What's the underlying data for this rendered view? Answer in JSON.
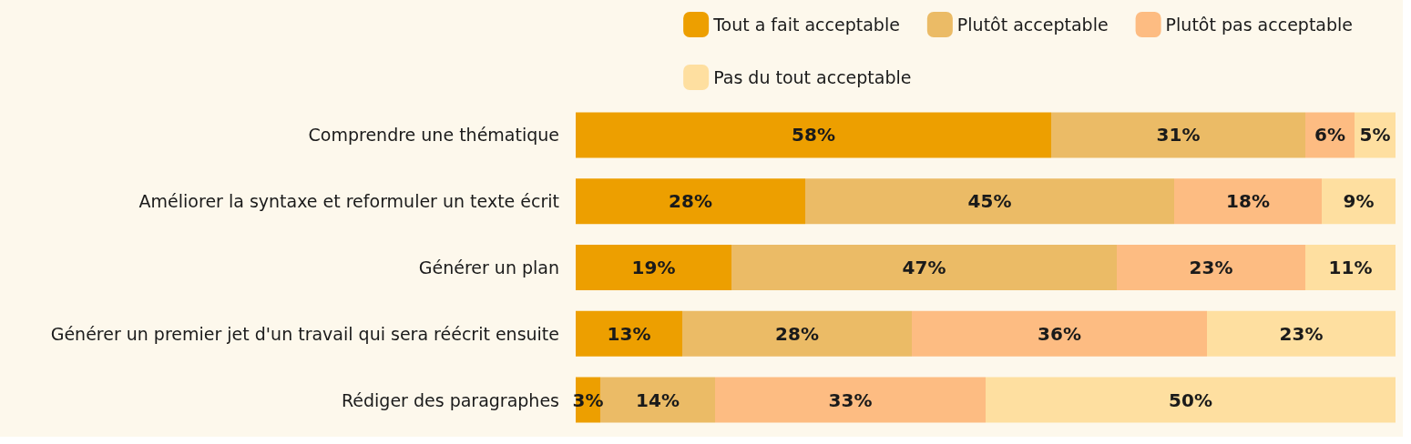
{
  "chart_data": {
    "type": "bar",
    "orientation": "horizontal",
    "stacked": true,
    "categories": [
      "Comprendre une thématique",
      "Améliorer la syntaxe et reformuler un texte écrit",
      "Générer un plan",
      "Générer un premier jet d'un travail qui sera réécrit ensuite",
      "Rédiger des paragraphes"
    ],
    "series": [
      {
        "name": "Tout a fait acceptable",
        "color": "#ed9f00",
        "values": [
          58,
          28,
          19,
          13,
          3
        ],
        "value_labels": [
          "58%",
          "28%",
          "19%",
          "13%",
          "3%"
        ]
      },
      {
        "name": "Plutôt acceptable",
        "color": "#ebbb66",
        "values": [
          31,
          45,
          47,
          28,
          14
        ],
        "value_labels": [
          "31%",
          "45%",
          "47%",
          "28%",
          "14%"
        ]
      },
      {
        "name": "Plutôt pas acceptable",
        "color": "#fdbc82",
        "values": [
          6,
          18,
          23,
          36,
          33
        ],
        "value_labels": [
          "6%",
          "18%",
          "23%",
          "36%",
          "33%"
        ]
      },
      {
        "name": "Pas du tout acceptable",
        "color": "#fedfa0",
        "values": [
          5,
          9,
          11,
          23,
          50
        ],
        "value_labels": [
          "5%",
          "9%",
          "11%",
          "23%",
          "50%"
        ]
      }
    ],
    "xlim": [
      0,
      100
    ],
    "tick_labels": "y",
    "legend": "top right"
  }
}
